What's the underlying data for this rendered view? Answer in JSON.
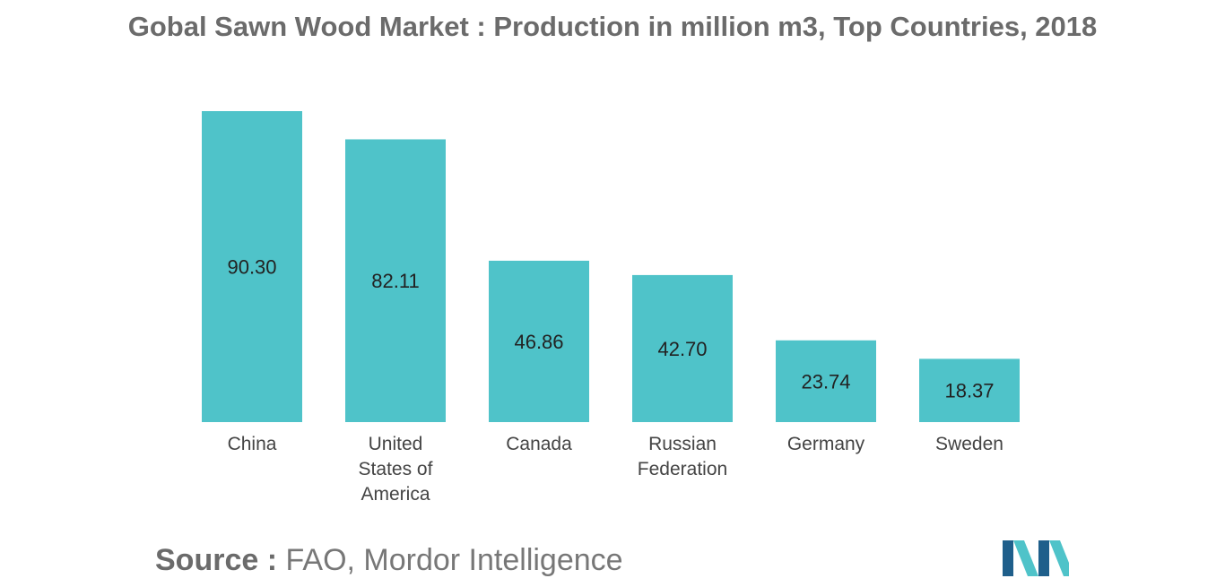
{
  "title": "Gobal Sawn Wood Market : Production in million m3, Top Countries, 2018",
  "colors": {
    "bar": "#4fc3c9",
    "logo_dark": "#1f5f8b",
    "logo_light": "#4fc3c9"
  },
  "source": {
    "prefix": "Source :",
    "text": "FAO, Mordor Intelligence"
  },
  "logo": {
    "icon": "mordor-intelligence-logo"
  },
  "chart_data": {
    "type": "bar",
    "title": "Gobal Sawn Wood Market : Production in million m3, Top Countries, 2018",
    "categories": [
      [
        "China"
      ],
      [
        "United",
        "States of",
        "America"
      ],
      [
        "Canada"
      ],
      [
        "Russian",
        "Federation"
      ],
      [
        "Germany"
      ],
      [
        "Sweden"
      ]
    ],
    "values": [
      90.3,
      82.11,
      46.86,
      42.7,
      23.74,
      18.37
    ],
    "value_labels": [
      "90.30",
      "82.11",
      "46.86",
      "42.70",
      "23.74",
      "18.37"
    ],
    "xlabel": "",
    "ylabel": "",
    "ylim": [
      0,
      90.3
    ],
    "grid": false,
    "legend": "none"
  }
}
